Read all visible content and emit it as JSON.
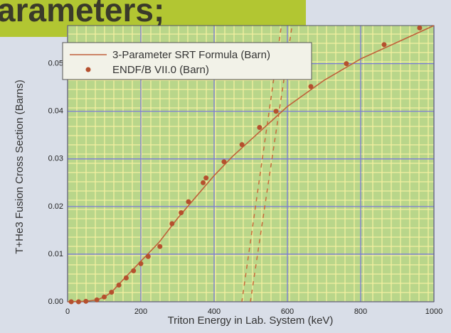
{
  "header_text": "arameters;",
  "chart_data": {
    "type": "line",
    "x_label": "Triton Energy in Lab. System (keV)",
    "y_label": "T+He3 Fusion Cross Section (Barns)",
    "xlim": [
      0,
      1000
    ],
    "xticks": [
      0,
      200,
      400,
      600,
      800,
      1000
    ],
    "ylim": [
      0,
      0.058
    ],
    "yticks": [
      {
        "value": 0,
        "label": "0.00"
      },
      0.01,
      0.02,
      0.03,
      0.04,
      0.05
    ],
    "grid": true,
    "series": [
      {
        "name": "3-Parameter SRT Formula (Barn)",
        "mode": "line",
        "color": "#c0603a",
        "x": [
          0,
          50,
          80,
          100,
          120,
          150,
          200,
          250,
          300,
          350,
          400,
          450,
          500,
          550,
          600,
          700,
          800,
          900,
          1000
        ],
        "values": [
          0,
          0.0001,
          0.0004,
          0.001,
          0.002,
          0.0045,
          0.0085,
          0.0125,
          0.0175,
          0.022,
          0.0265,
          0.0305,
          0.034,
          0.0375,
          0.041,
          0.0465,
          0.051,
          0.0545,
          0.058
        ]
      },
      {
        "name": "ENDF/B VII.0 (Barn)",
        "mode": "markers",
        "color": "#b5502e",
        "x": [
          10,
          30,
          50,
          80,
          100,
          120,
          140,
          160,
          180,
          200,
          220,
          252,
          285,
          310,
          330,
          370,
          378,
          427,
          476,
          524,
          569,
          664,
          761,
          864,
          961
        ],
        "values": [
          0,
          0,
          0.0001,
          0.0004,
          0.001,
          0.002,
          0.0035,
          0.005,
          0.0065,
          0.008,
          0.0095,
          0.0116,
          0.0164,
          0.0187,
          0.021,
          0.025,
          0.026,
          0.0294,
          0.033,
          0.0366,
          0.04,
          0.0452,
          0.05,
          0.054,
          0.0575
        ]
      }
    ]
  }
}
